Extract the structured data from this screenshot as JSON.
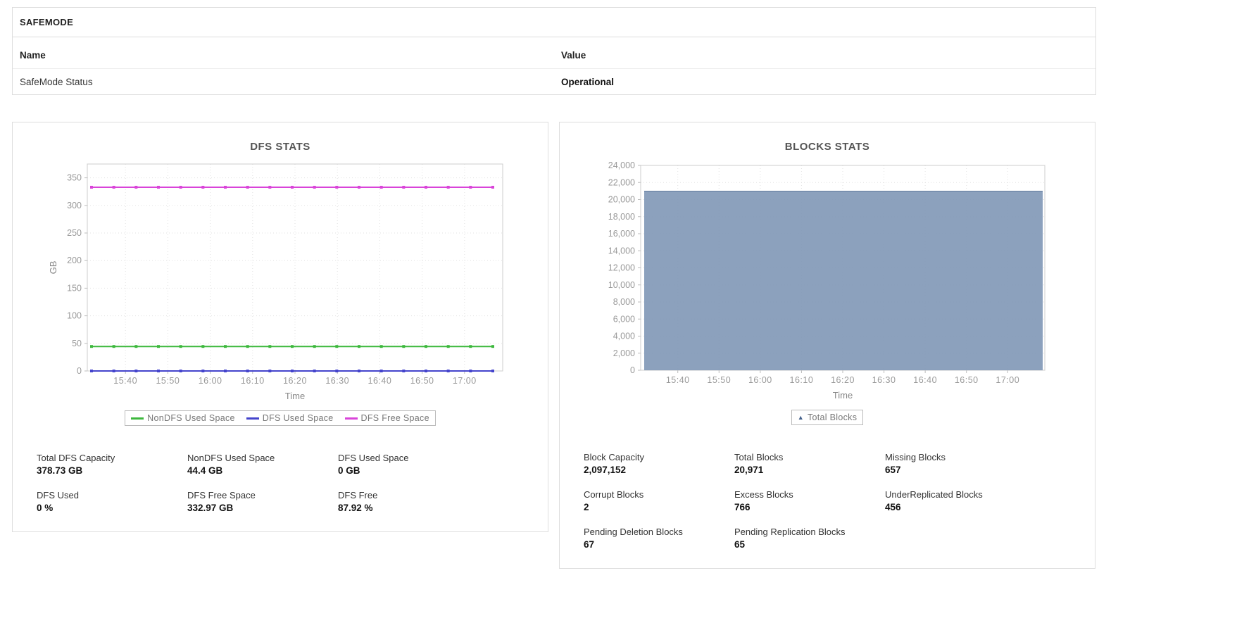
{
  "safemode": {
    "title": "SAFEMODE",
    "columns": [
      "Name",
      "Value"
    ],
    "rows": [
      {
        "name": "SafeMode Status",
        "value": "Operational"
      }
    ]
  },
  "dfs_panel": {
    "stats": [
      {
        "label": "Total DFS Capacity",
        "value": "378.73 GB"
      },
      {
        "label": "NonDFS Used Space",
        "value": "44.4 GB"
      },
      {
        "label": "DFS Used Space",
        "value": "0 GB"
      },
      {
        "label": "DFS Used",
        "value": "0 %"
      },
      {
        "label": "DFS Free Space",
        "value": "332.97 GB"
      },
      {
        "label": "DFS Free",
        "value": "87.92 %"
      }
    ]
  },
  "blocks_panel": {
    "stats": [
      {
        "label": "Block Capacity",
        "value": "2,097,152"
      },
      {
        "label": "Total Blocks",
        "value": "20,971"
      },
      {
        "label": "Missing Blocks",
        "value": "657"
      },
      {
        "label": "Corrupt Blocks",
        "value": "2"
      },
      {
        "label": "Excess Blocks",
        "value": "766"
      },
      {
        "label": "UnderReplicated Blocks",
        "value": "456"
      },
      {
        "label": "Pending Deletion Blocks",
        "value": "67"
      },
      {
        "label": "Pending Replication Blocks",
        "value": "65"
      }
    ]
  },
  "chart_data": [
    {
      "id": "dfs-stats",
      "type": "line",
      "title": "DFS STATS",
      "xlabel": "Time",
      "ylabel": "GB",
      "x_ticks": [
        "15:40",
        "15:50",
        "16:00",
        "16:10",
        "16:20",
        "16:30",
        "16:40",
        "16:50",
        "17:00"
      ],
      "ylim": [
        0,
        375
      ],
      "y_tick_step": 50,
      "grid": true,
      "legend_position": "bottom",
      "series": [
        {
          "name": "NonDFS Used Space",
          "value": 44.4,
          "color": "#3db83d"
        },
        {
          "name": "DFS Used Space",
          "value": 0,
          "color": "#4444cc"
        },
        {
          "name": "DFS Free Space",
          "value": 332.97,
          "color": "#d944d9"
        }
      ]
    },
    {
      "id": "blocks-stats",
      "type": "area",
      "title": "BLOCKS STATS",
      "xlabel": "Time",
      "ylabel": "",
      "x_ticks": [
        "15:40",
        "15:50",
        "16:00",
        "16:10",
        "16:20",
        "16:30",
        "16:40",
        "16:50",
        "17:00"
      ],
      "ylim": [
        0,
        24000
      ],
      "y_tick_step": 2000,
      "y_tick_thousands": true,
      "grid": true,
      "legend_position": "bottom",
      "series": [
        {
          "name": "Total Blocks",
          "value": 20971,
          "color": "#8299b7",
          "line_color": "#7289a9",
          "legend_marker_color": "#44618b"
        }
      ]
    }
  ]
}
